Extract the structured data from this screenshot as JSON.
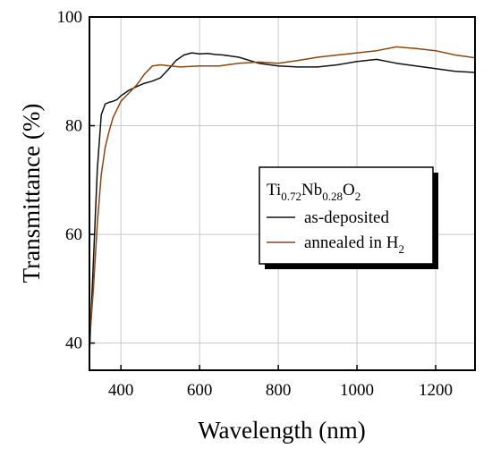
{
  "chart_data": {
    "type": "line",
    "xlabel": "Wavelength (nm)",
    "ylabel": "Transmittance (%)",
    "xlim": [
      320,
      1300
    ],
    "ylim": [
      35,
      100
    ],
    "x_ticks": [
      400,
      600,
      800,
      1000,
      1200
    ],
    "y_ticks": [
      40,
      60,
      80,
      100
    ],
    "grid": true,
    "legend_placement": "right-middle",
    "legend_title": {
      "parts": [
        {
          "text": "Ti",
          "sub": "0.72"
        },
        {
          "text": "Nb",
          "sub": "0.28"
        },
        {
          "text": "O",
          "sub": "2"
        }
      ]
    },
    "series": [
      {
        "name": "as-deposited",
        "color": "#111111",
        "x": [
          320,
          330,
          340,
          350,
          360,
          370,
          380,
          390,
          400,
          420,
          440,
          460,
          480,
          500,
          520,
          540,
          560,
          580,
          600,
          620,
          640,
          660,
          680,
          700,
          750,
          800,
          850,
          900,
          950,
          1000,
          1050,
          1100,
          1150,
          1200,
          1250,
          1300
        ],
        "y": [
          38,
          55,
          72,
          82,
          84,
          84.3,
          84.5,
          84.8,
          85.5,
          86.5,
          87.2,
          87.8,
          88.2,
          88.8,
          90.3,
          92.0,
          93.0,
          93.4,
          93.2,
          93.3,
          93.1,
          93.0,
          92.8,
          92.6,
          91.5,
          91.0,
          90.8,
          90.8,
          91.2,
          91.8,
          92.2,
          91.5,
          91.0,
          90.5,
          90.0,
          89.8
        ]
      },
      {
        "name": "annealed in H",
        "name_sub": "2",
        "color": "#8b4513",
        "x": [
          320,
          330,
          340,
          350,
          360,
          370,
          380,
          390,
          400,
          420,
          440,
          460,
          480,
          500,
          550,
          600,
          650,
          700,
          750,
          800,
          850,
          900,
          950,
          1000,
          1050,
          1100,
          1150,
          1200,
          1250,
          1300
        ],
        "y": [
          40,
          50,
          62,
          71,
          76,
          79,
          81.5,
          83,
          84.5,
          86,
          87.5,
          89.5,
          91,
          91.2,
          90.8,
          91.0,
          91.0,
          91.5,
          91.7,
          91.5,
          92.0,
          92.6,
          93.0,
          93.4,
          93.8,
          94.5,
          94.2,
          93.8,
          93.0,
          92.5
        ]
      }
    ]
  }
}
